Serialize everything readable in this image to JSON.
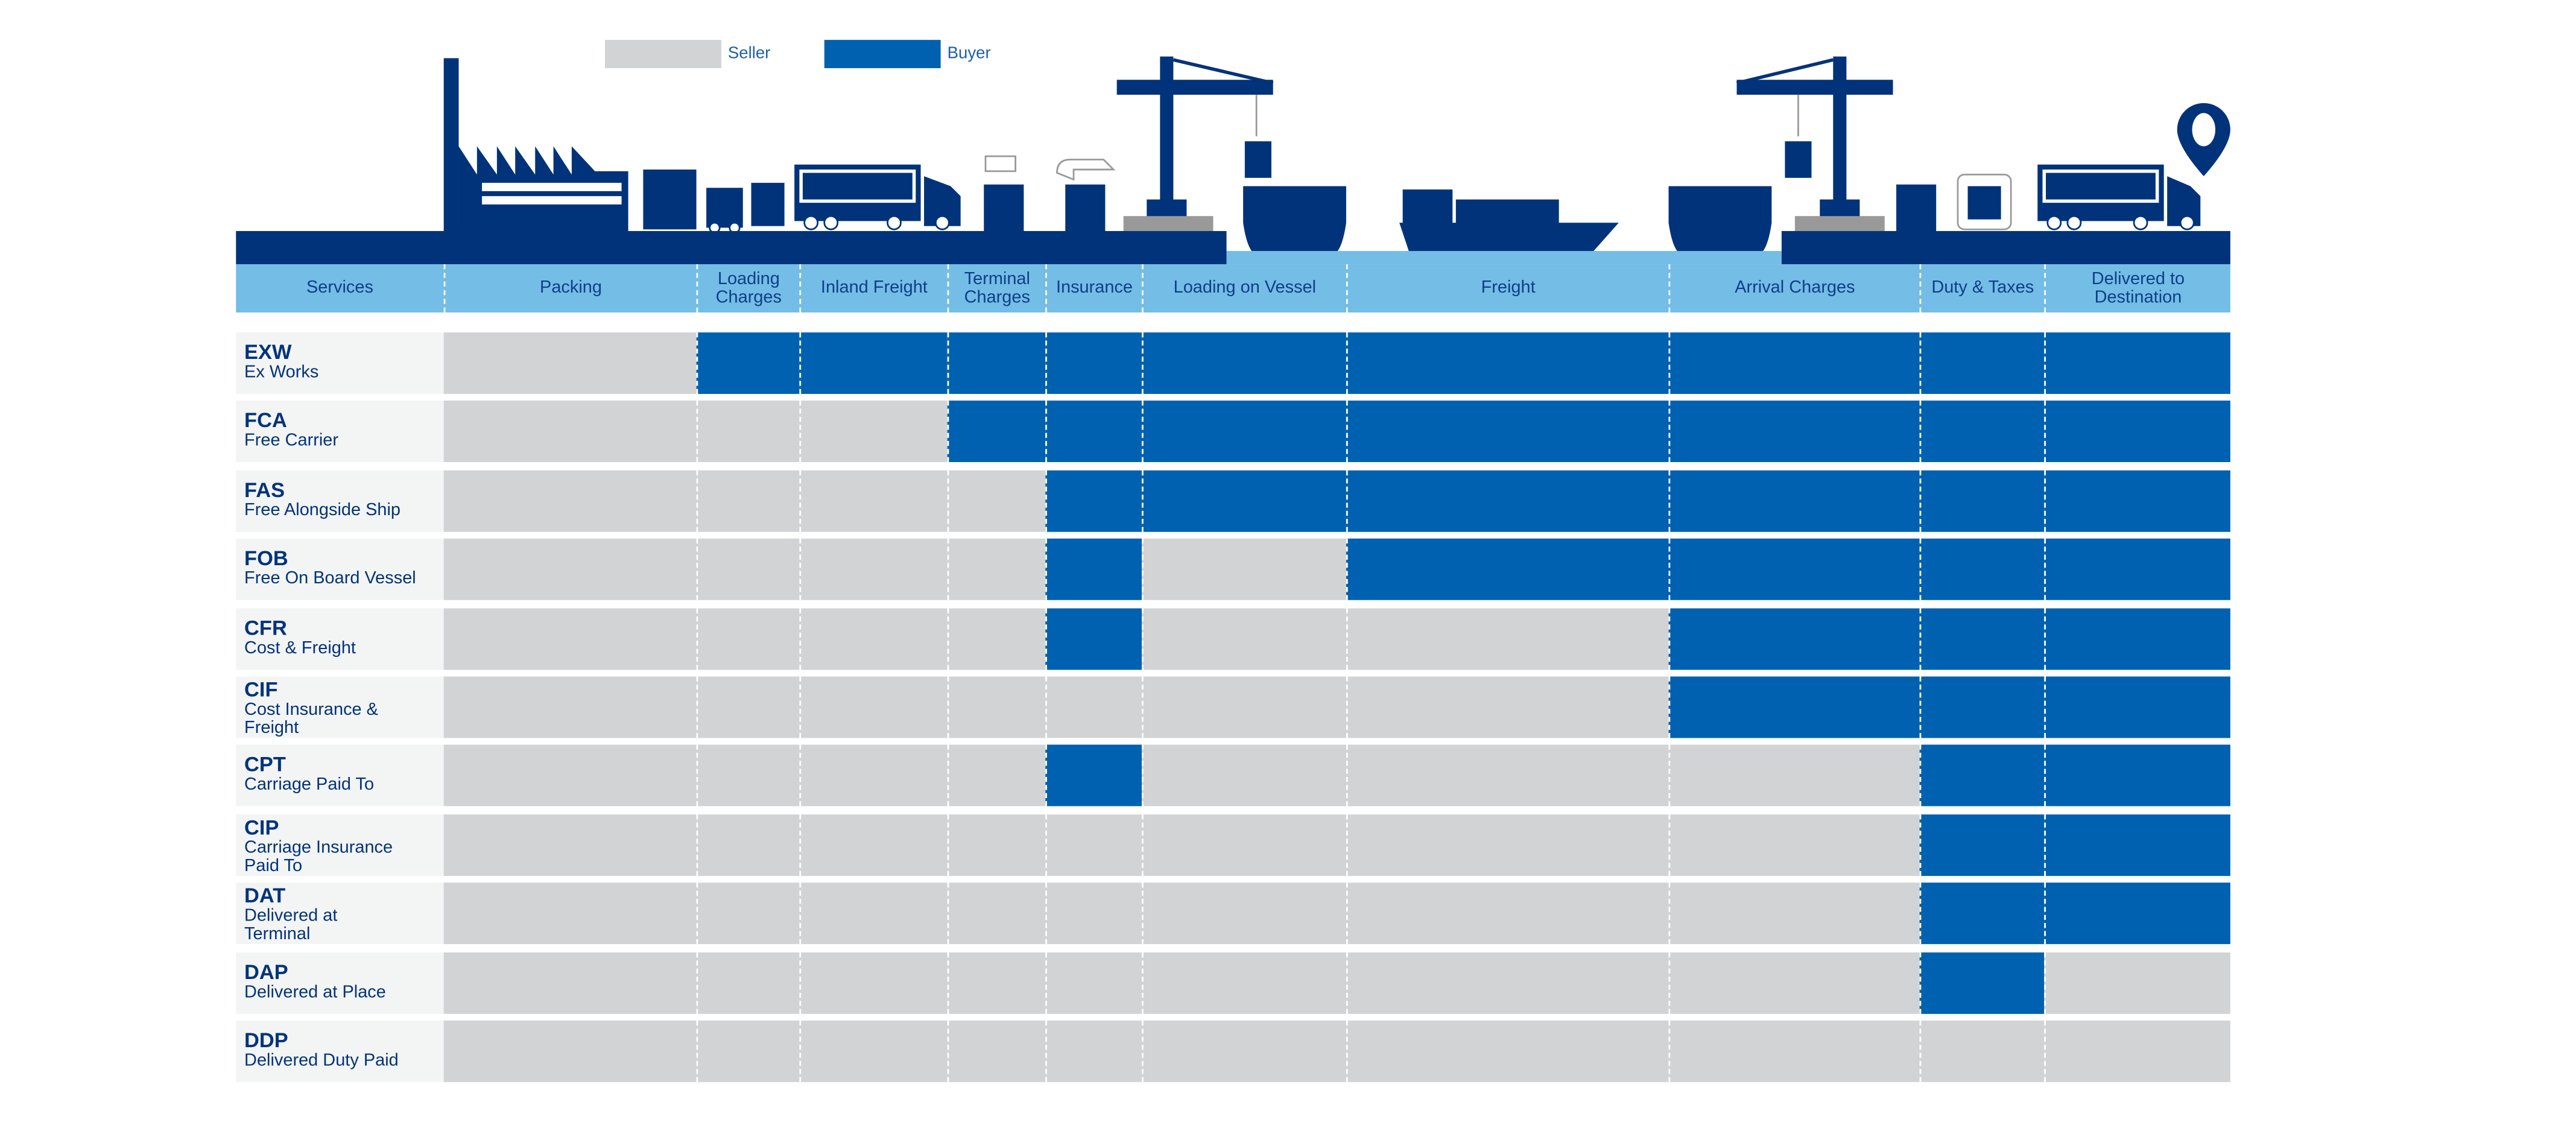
{
  "legend": {
    "seller_label": "Seller",
    "buyer_label": "Buyer"
  },
  "colors": {
    "seller": "#d2d3d5",
    "buyer": "#0061b0",
    "navy": "#00337a",
    "header": "#74bde6"
  },
  "illustration_icons": [
    "factory-icon",
    "pallet-icon",
    "forklift-truck-icon",
    "lorry-icon",
    "money-icon",
    "insurance-hand-icon",
    "crane-icon",
    "ship-icon",
    "cargo-ship-icon",
    "customs-officer-icon",
    "location-pin-icon"
  ],
  "columns": [
    "Services",
    "Packing",
    "Loading Charges",
    "Inland Freight",
    "Terminal Charges",
    "Insurance",
    "Loading on Vessel",
    "Freight",
    "Arrival Charges",
    "Duty & Taxes",
    "Delivered to Destination"
  ],
  "rows": [
    {
      "code": "EXW",
      "desc": "Ex Works",
      "resp": "SBBBBBBBBB"
    },
    {
      "code": "FCA",
      "desc": "Free Carrier",
      "resp": "SSSBBBBBBB"
    },
    {
      "code": "FAS",
      "desc": "Free Alongside Ship",
      "resp": "SSSSBBBBBB"
    },
    {
      "code": "FOB",
      "desc": "Free On Board Vessel",
      "resp": "SSSSBSBBBB"
    },
    {
      "code": "CFR",
      "desc": "Cost & Freight",
      "resp": "SSSSBSSBBB"
    },
    {
      "code": "CIF",
      "desc": "Cost Insurance & Freight",
      "resp": "SSSSSSSBBB"
    },
    {
      "code": "CPT",
      "desc": "Carriage Paid To",
      "resp": "SSSSBSSSBB"
    },
    {
      "code": "CIP",
      "desc": "Carriage Insurance Paid To",
      "resp": "SSSSSSSSBB"
    },
    {
      "code": "DAT",
      "desc": "Delivered at Terminal",
      "resp": "SSSSSSSSBB"
    },
    {
      "code": "DAP",
      "desc": "Delivered at Place",
      "resp": "SSSSSSSSBS"
    },
    {
      "code": "DDP",
      "desc": "Delivered Duty Paid",
      "resp": "SSSSSSSSSS"
    }
  ]
}
